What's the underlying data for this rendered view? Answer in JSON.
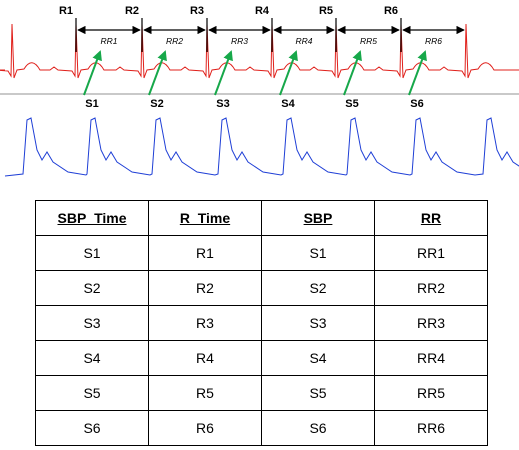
{
  "diagram": {
    "r_labels": [
      "R1",
      "R2",
      "R3",
      "R4",
      "R5",
      "R6"
    ],
    "s_labels": [
      "S1",
      "S2",
      "S3",
      "S4",
      "S5",
      "S6"
    ],
    "rr_labels": [
      "RR1",
      "RR2",
      "RR3",
      "RR4",
      "RR5",
      "RR6"
    ],
    "colors": {
      "ecg": "#e0201b",
      "bp": "#1f3fd6",
      "arrow": "#17a84a",
      "divider": "#c9c9c9",
      "marker": "#000000"
    }
  },
  "table": {
    "headers": [
      "SBP_Time",
      "R_Time",
      "SBP",
      "RR"
    ],
    "rows": [
      [
        "S1",
        "R1",
        "S1",
        "RR1"
      ],
      [
        "S2",
        "R2",
        "S2",
        "RR2"
      ],
      [
        "S3",
        "R3",
        "S3",
        "RR3"
      ],
      [
        "S4",
        "R4",
        "S4",
        "RR4"
      ],
      [
        "S5",
        "R5",
        "S5",
        "RR5"
      ],
      [
        "S6",
        "R6",
        "S6",
        "RR6"
      ]
    ]
  }
}
